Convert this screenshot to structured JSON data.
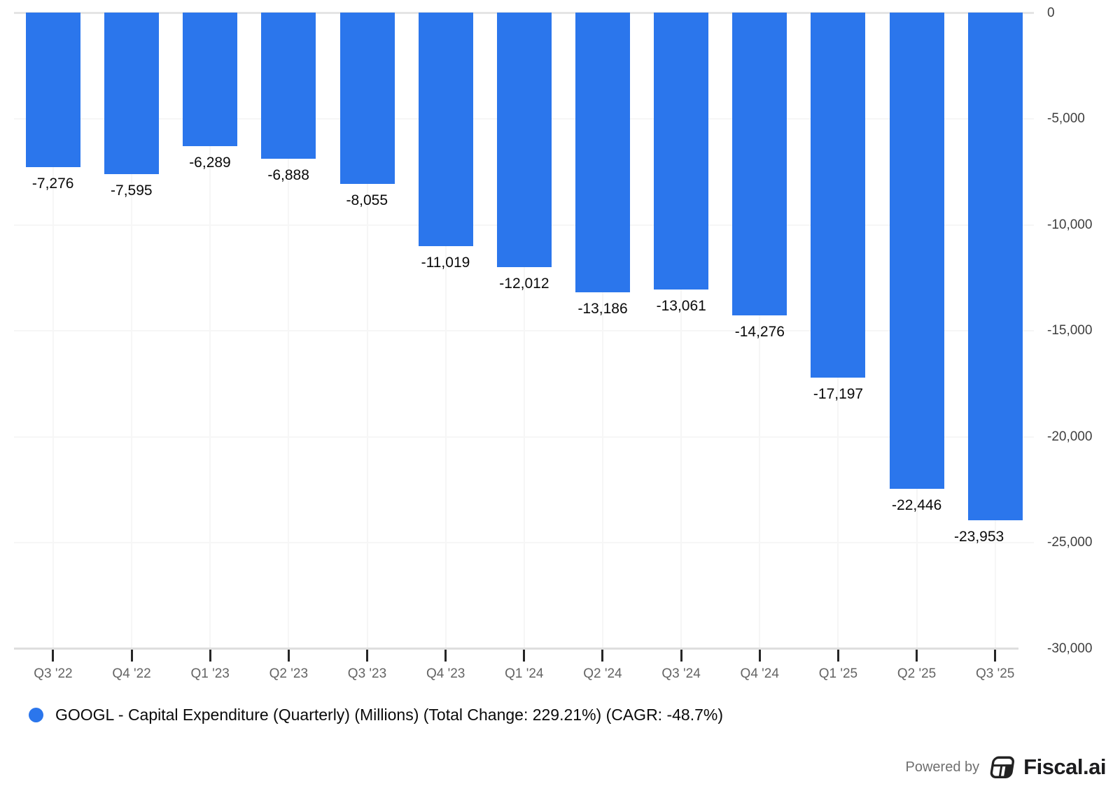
{
  "chart_data": {
    "type": "bar",
    "title": "",
    "xlabel": "",
    "ylabel": "",
    "categories": [
      "Q3 '22",
      "Q4 '22",
      "Q1 '23",
      "Q2 '23",
      "Q3 '23",
      "Q4 '23",
      "Q1 '24",
      "Q2 '24",
      "Q3 '24",
      "Q4 '24",
      "Q1 '25",
      "Q2 '25",
      "Q3 '25"
    ],
    "values": [
      -7276,
      -7595,
      -6289,
      -6888,
      -8055,
      -11019,
      -12012,
      -13186,
      -13061,
      -14276,
      -17197,
      -22446,
      -23953
    ],
    "value_labels": [
      "-7,276",
      "-7,595",
      "-6,289",
      "-6,888",
      "-8,055",
      "-11,019",
      "-12,012",
      "-13,186",
      "-13,061",
      "-14,276",
      "-17,197",
      "-22,446",
      "-23,953"
    ],
    "series_name": "GOOGL - Capital Expenditure (Quarterly) (Millions) (Total Change: 229.21%) (CAGR: -48.7%)",
    "ylim": [
      -30000,
      0
    ],
    "y_ticks": [
      {
        "label": "0",
        "value": 0
      },
      {
        "label": "-5,000",
        "value": -5000
      },
      {
        "label": "-10,000",
        "value": -10000
      },
      {
        "label": "-15,000",
        "value": -15000
      },
      {
        "label": "-20,000",
        "value": -20000
      },
      {
        "label": "-25,000",
        "value": -25000
      },
      {
        "label": "-30,000",
        "value": -30000
      }
    ],
    "grid": true,
    "y_axis_side": "right",
    "legend_position": "bottom-left",
    "bar_color": "#2B76EC"
  },
  "legend": {
    "label": "GOOGL - Capital Expenditure (Quarterly) (Millions) (Total Change: 229.21%) (CAGR: -48.7%)",
    "marker_color": "#2B76EC"
  },
  "footer": {
    "powered_by": "Powered by",
    "brand": "Fiscal.ai"
  }
}
